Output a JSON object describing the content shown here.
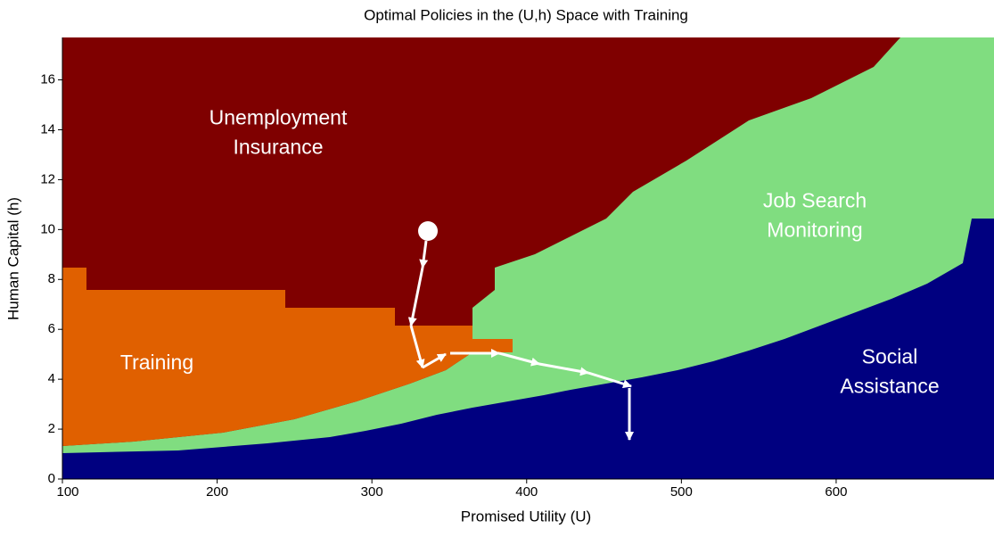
{
  "chart_data": {
    "type": "region",
    "title": "Optimal Policies in the (U,h) Space with Training",
    "x_label": "Promised Utility (U)",
    "y_label": "Human Capital (h)",
    "xlim": [
      100,
      702
    ],
    "xticks": [
      100,
      200,
      300,
      400,
      500,
      600
    ],
    "ylim": [
      0,
      17.7
    ],
    "yticks": [
      0,
      2,
      4,
      6,
      8,
      10,
      12,
      14,
      16
    ],
    "regions": [
      {
        "name": [
          "Unemployment",
          "Insurance"
        ],
        "color": "#7f0000"
      },
      {
        "name": [
          "Training"
        ],
        "color": "#e06000"
      },
      {
        "name": [
          "Job Search",
          "Monitoring"
        ],
        "color": "#80dd80"
      },
      {
        "name": [
          "Social",
          "Assistance"
        ],
        "color": "#000080"
      }
    ]
  }
}
